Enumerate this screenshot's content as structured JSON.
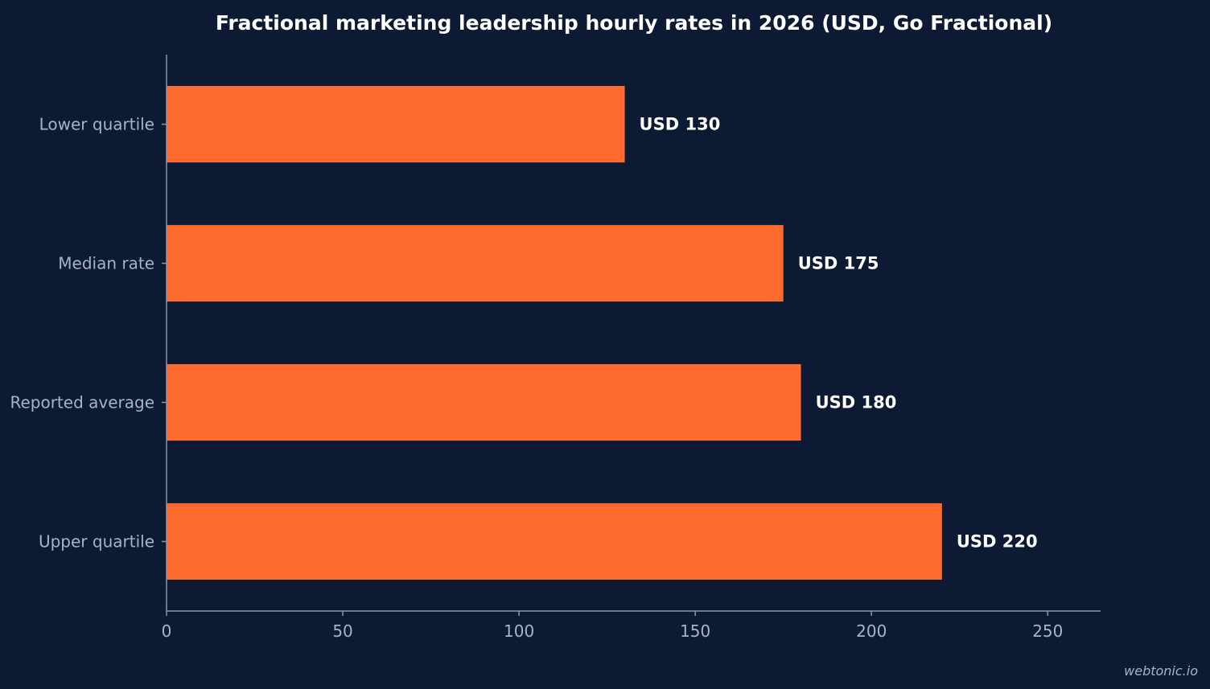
{
  "chart_data": {
    "type": "bar",
    "orientation": "horizontal",
    "title": "Fractional marketing leadership hourly rates in 2026 (USD, Go Fractional)",
    "xlabel": "",
    "ylabel": "",
    "categories": [
      "Lower quartile",
      "Median rate",
      "Reported average",
      "Upper quartile"
    ],
    "values": [
      130,
      175,
      180,
      220
    ],
    "data_labels": [
      "USD 130",
      "USD 175",
      "USD 180",
      "USD 220"
    ],
    "xlim": [
      0,
      265
    ],
    "x_ticks": [
      0,
      50,
      100,
      150,
      200,
      250
    ],
    "grid": false,
    "legend": "none",
    "colors": {
      "background": "#0c1b33",
      "bar": "#ff6b2e",
      "axis": "#8796ad",
      "tick_text": "#a7b3c6",
      "title_text": "#ffffff"
    }
  },
  "watermark": "webtonic.io"
}
